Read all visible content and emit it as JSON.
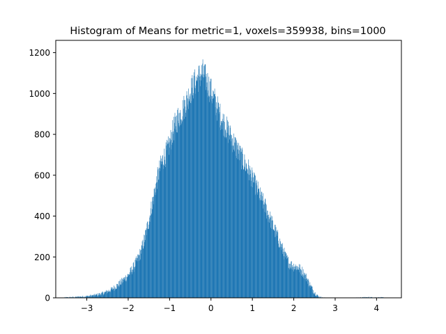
{
  "chart_data": {
    "type": "bar",
    "title": "Histogram of Means for metric=1, voxels=359938, bins=1000",
    "xlabel": "",
    "ylabel": "",
    "xlim": [
      -3.75,
      4.6
    ],
    "ylim": [
      0,
      1260
    ],
    "bins": 1000,
    "grid": false,
    "legend": "none",
    "bar_color": "#1f77b4",
    "x_ticks": [
      -3,
      -2,
      -1,
      0,
      1,
      2,
      3,
      4
    ],
    "x_tick_labels": [
      "−3",
      "−2",
      "−1",
      "0",
      "1",
      "2",
      "3",
      "4"
    ],
    "y_ticks": [
      0,
      200,
      400,
      600,
      800,
      1000,
      1200
    ],
    "y_tick_labels": [
      "0",
      "200",
      "400",
      "600",
      "800",
      "1000",
      "1200"
    ],
    "envelope": {
      "x": [
        -3.55,
        -3.3,
        -3.0,
        -2.8,
        -2.6,
        -2.4,
        -2.2,
        -2.0,
        -1.9,
        -1.8,
        -1.7,
        -1.6,
        -1.5,
        -1.4,
        -1.3,
        -1.2,
        -1.1,
        -1.0,
        -0.9,
        -0.8,
        -0.7,
        -0.6,
        -0.5,
        -0.4,
        -0.3,
        -0.2,
        -0.1,
        0.0,
        0.1,
        0.2,
        0.3,
        0.4,
        0.5,
        0.6,
        0.7,
        0.8,
        0.9,
        1.0,
        1.1,
        1.2,
        1.3,
        1.4,
        1.5,
        1.6,
        1.7,
        1.8,
        1.9,
        2.0,
        2.1,
        2.2,
        2.3,
        2.4,
        2.5,
        2.6,
        2.7,
        2.8,
        3.0,
        3.4,
        3.8,
        4.2
      ],
      "y": [
        1,
        3,
        7,
        12,
        22,
        40,
        70,
        110,
        140,
        175,
        220,
        290,
        380,
        480,
        580,
        660,
        700,
        750,
        830,
        880,
        910,
        960,
        1010,
        1050,
        1080,
        1100,
        1060,
        1010,
        960,
        900,
        860,
        820,
        780,
        740,
        700,
        660,
        630,
        580,
        540,
        490,
        450,
        400,
        350,
        300,
        250,
        200,
        165,
        155,
        150,
        130,
        100,
        60,
        25,
        5,
        1,
        0,
        0,
        0,
        2,
        1
      ]
    }
  }
}
